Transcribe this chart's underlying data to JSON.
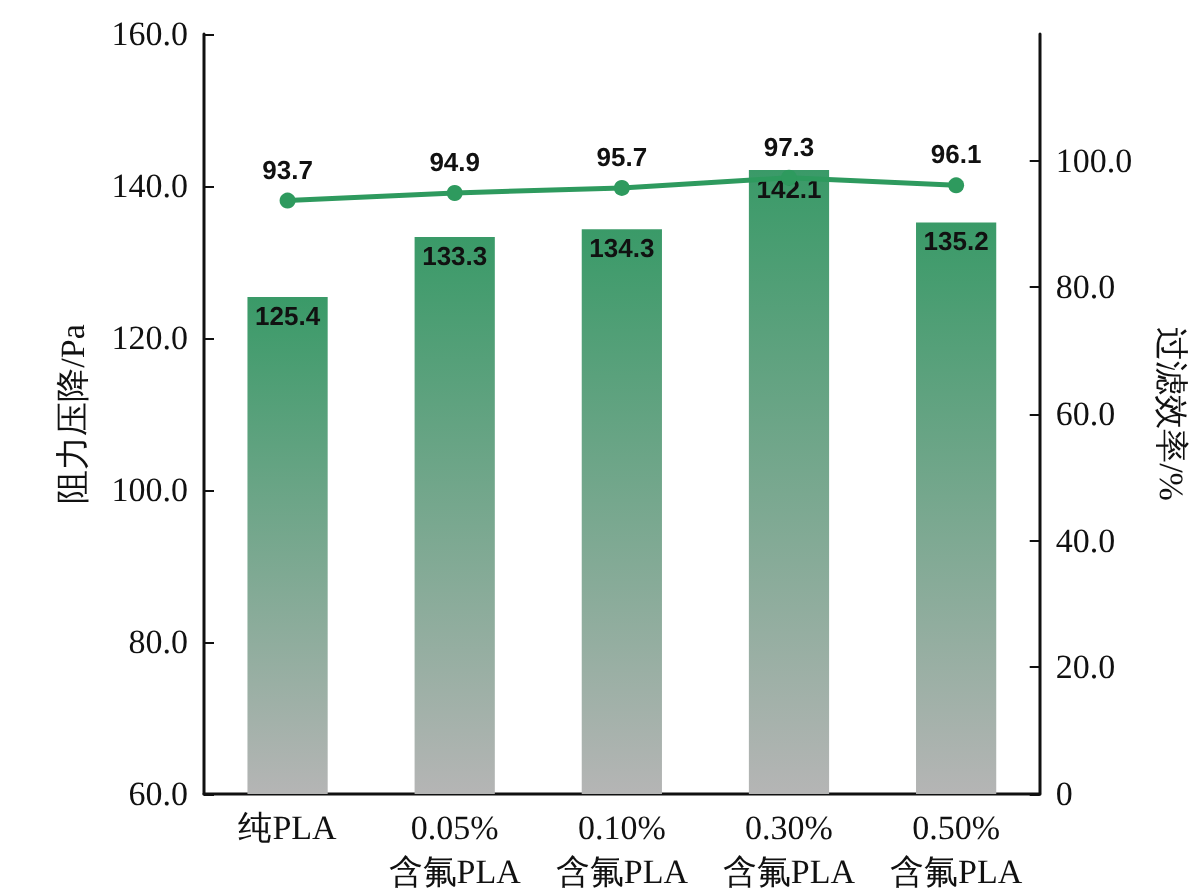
{
  "chart_data": {
    "type": "bar",
    "categories": [
      "纯PLA",
      "0.05%\n含氟PLA",
      "0.10%\n含氟PLA",
      "0.30%\n含氟PLA",
      "0.50%\n含氟PLA"
    ],
    "ylabel": "阻力压降/Pa",
    "y2label": "过滤效率/%",
    "series": [
      {
        "color": "#3a9a68",
        "values": [
          125.4,
          133.3,
          134.3,
          142.1,
          135.2
        ]
      },
      {
        "type": "line",
        "axis": "y2",
        "color": "#2e9a5e",
        "values": [
          93.7,
          94.9,
          95.7,
          97.3,
          96.1
        ]
      }
    ],
    "ylim": [
      60,
      160
    ],
    "yticks": [
      {
        "value": 60,
        "label": "60.0"
      },
      {
        "value": 80,
        "label": "80.0"
      },
      {
        "value": 100,
        "label": "100.0"
      },
      {
        "value": 120,
        "label": "120.0"
      },
      {
        "value": 140,
        "label": "140.0"
      },
      {
        "value": 160,
        "label": "160.0"
      }
    ],
    "y2lim": [
      0,
      120
    ],
    "y2ticks": [
      0,
      {
        "value": 20,
        "label": "20.0"
      },
      {
        "value": 40,
        "label": "40.0"
      },
      {
        "value": 60,
        "label": "60.0"
      },
      {
        "value": 80,
        "label": "80.0"
      },
      {
        "value": 100,
        "label": "100.0"
      }
    ],
    "data_labels": true,
    "marker": "circle",
    "line_style": "solid",
    "grid": false
  }
}
